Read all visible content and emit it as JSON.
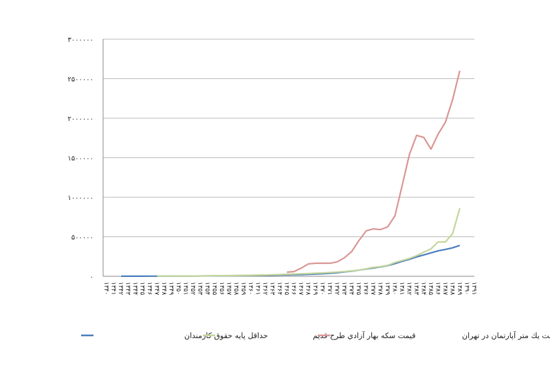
{
  "chart_data": {
    "type": "line",
    "categories": [
      "۱۳۴۰",
      "۱۳۴۱",
      "۱۳۴۲",
      "۱۳۴۳",
      "۱۳۴۴",
      "۱۳۴۵",
      "۱۳۴۶",
      "۱۳۴۷",
      "۱۳۴۸",
      "۱۳۴۹",
      "۱۳۵۰",
      "۱۳۵۱",
      "۱۳۵۲",
      "۱۳۵۳",
      "۱۳۵۴",
      "۱۳۵۵",
      "۱۳۵۶",
      "۱۳۵۷",
      "۱۳۵۸",
      "۱۳۵۹",
      "۱۳۶۰",
      "۱۳۶۱",
      "۱۳۶۲",
      "۱۳۶۳",
      "۱۳۶۴",
      "۱۳۶۵",
      "۱۳۶۶",
      "۱۳۶۷",
      "۱۳۶۸",
      "۱۳۶۹",
      "۱۳۷۰",
      "۱۳۷۱",
      "۱۳۷۲",
      "۱۳۷۳",
      "۱۳۷۴",
      "۱۳۷۵",
      "۱۳۷۶",
      "۱۳۷۷",
      "۱۳۷۸",
      "۱۳۷۹",
      "۱۳۸۰",
      "۱۳۸۱",
      "۱۳۸۲",
      "۱۳۸۳",
      "۱۳۸۴",
      "۱۳۸۵",
      "۱۳۸۶",
      "۱۳۸۷",
      "۱۳۸۸",
      "۱۳۸۹",
      "۱۳۹۰",
      "۱۳۹۱"
    ],
    "series": [
      {
        "name": "حداقل پايه حقوق كارمندان",
        "color": "#4a7ebb",
        "values": [
          null,
          null,
          1200,
          1200,
          1300,
          1400,
          1500,
          1600,
          1800,
          2000,
          2500,
          3000,
          3500,
          4000,
          5000,
          6000,
          7000,
          8000,
          9000,
          10000,
          11000,
          12000,
          13000,
          14000,
          16000,
          18000,
          20000,
          22000,
          25000,
          28000,
          32000,
          38000,
          45000,
          55000,
          65000,
          78000,
          92000,
          105000,
          118000,
          135000,
          160000,
          190000,
          215000,
          245000,
          270000,
          296000,
          322000,
          340000,
          360000,
          391000,
          null,
          null
        ]
      },
      {
        "name": "قيمت سكه بهار آزادي طرح قديم",
        "color": "#c3d69b",
        "values": [
          null,
          null,
          null,
          null,
          null,
          null,
          null,
          2000,
          2200,
          2500,
          3000,
          3500,
          4000,
          5000,
          6000,
          7000,
          8000,
          9000,
          10000,
          12000,
          13000,
          15000,
          17000,
          19000,
          22000,
          26000,
          29000,
          32000,
          35000,
          39000,
          43000,
          48000,
          54000,
          60000,
          68000,
          78000,
          95000,
          113000,
          122000,
          139000,
          174000,
          200000,
          226000,
          261000,
          304000,
          348000,
          435000,
          435000,
          539000,
          861000,
          null,
          null
        ]
      },
      {
        "name": "متوسط قيمت يك متر آپارتمان در تهران",
        "color": "#d99694",
        "values": [
          null,
          null,
          null,
          null,
          null,
          null,
          null,
          null,
          null,
          null,
          null,
          null,
          null,
          null,
          null,
          null,
          null,
          null,
          null,
          null,
          null,
          null,
          null,
          null,
          null,
          52000,
          60000,
          104000,
          157000,
          165000,
          165000,
          165000,
          183000,
          235000,
          313000,
          452000,
          574000,
          600000,
          591000,
          626000,
          765000,
          1148000,
          1539000,
          1783000,
          1757000,
          1609000,
          1800000,
          1948000,
          2235000,
          2600000,
          null,
          null
        ]
      }
    ],
    "ylim": [
      0,
      3000000
    ],
    "yticks": [
      {
        "value": 0,
        "label": "۰"
      },
      {
        "value": 500000,
        "label": "۵۰۰۰۰۰"
      },
      {
        "value": 1000000,
        "label": "۱۰۰۰۰۰۰"
      },
      {
        "value": 1500000,
        "label": "۱۵۰۰۰۰۰"
      },
      {
        "value": 2000000,
        "label": "۲۰۰۰۰۰۰"
      },
      {
        "value": 2500000,
        "label": "۲۵۰۰۰۰۰"
      },
      {
        "value": 3000000,
        "label": "۳۰۰۰۰۰۰"
      }
    ],
    "grid": true
  }
}
